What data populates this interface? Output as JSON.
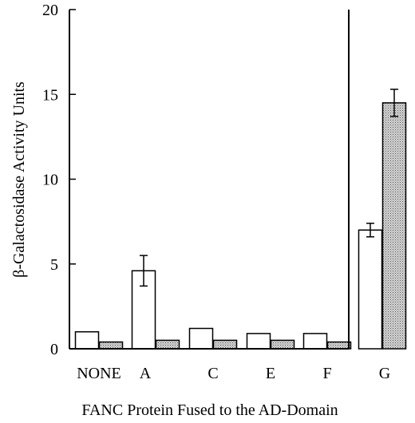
{
  "chart_data": {
    "type": "bar",
    "xlabel": "FANC Protein Fused to the AD-Domain",
    "ylabel": "β-Galactosidase Activity Units",
    "ylim": [
      0,
      20
    ],
    "yticks": [
      "0",
      "5",
      "10",
      "15",
      "20"
    ],
    "categories": [
      "NONE",
      "A",
      "C",
      "E",
      "F",
      "G"
    ],
    "series": [
      {
        "fill": "#ffffff",
        "values": [
          1.0,
          4.6,
          1.2,
          0.9,
          0.9,
          7.0
        ],
        "errors": [
          0,
          0.9,
          0,
          0,
          0,
          0.4
        ]
      },
      {
        "fill": "#bdbdbd",
        "pattern": "stipple",
        "values": [
          0.4,
          0.5,
          0.5,
          0.5,
          0.4,
          14.5
        ],
        "errors": [
          0,
          0,
          0,
          0,
          0,
          0.8
        ]
      }
    ],
    "grid": false,
    "legend": "none"
  }
}
